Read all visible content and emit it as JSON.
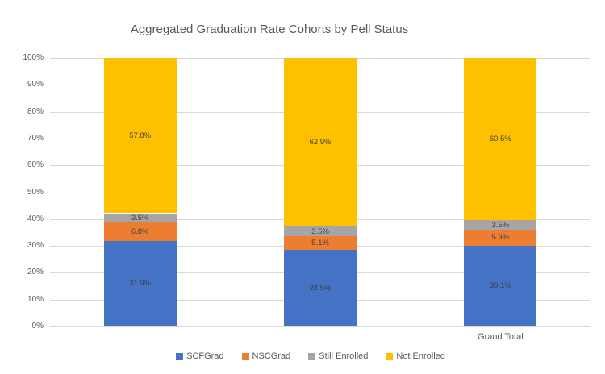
{
  "chart_data": {
    "type": "bar",
    "stacked": true,
    "percent_stacked": true,
    "title": "Aggregated Graduation Rate Cohorts by Pell Status",
    "xlabel": "",
    "ylabel": "",
    "ylim": [
      0,
      100
    ],
    "grid": true,
    "legend_position": "bottom",
    "y_axis_ticks": [
      "0%",
      "10%",
      "20%",
      "30%",
      "40%",
      "50%",
      "60%",
      "70%",
      "80%",
      "90%",
      "100%"
    ],
    "categories": [
      "",
      "",
      "Grand Total"
    ],
    "series": [
      {
        "name": "SCFGrad",
        "color": "#4472C4",
        "values": [
          31.9,
          28.5,
          30.1
        ],
        "labels": [
          "31.9%",
          "28.5%",
          "30.1%"
        ]
      },
      {
        "name": "NSCGrad",
        "color": "#ED7D31",
        "values": [
          6.8,
          5.1,
          5.9
        ],
        "labels": [
          "6.8%",
          "5.1%",
          "5.9%"
        ]
      },
      {
        "name": "Still Enrolled",
        "color": "#A5A5A5",
        "values": [
          3.5,
          3.5,
          3.5
        ],
        "labels": [
          "3.5%",
          "3.5%",
          "3.5%"
        ]
      },
      {
        "name": "Not Enrolled",
        "color": "#FFC000",
        "values": [
          57.8,
          62.9,
          60.5
        ],
        "labels": [
          "57.8%",
          "62.9%",
          "60.5%"
        ]
      }
    ],
    "colors": {
      "gridline": "#D9D9D9",
      "axis_text": "#595959",
      "title_text": "#595959",
      "data_label_text": "#404040",
      "background": "#FFFFFF"
    }
  }
}
